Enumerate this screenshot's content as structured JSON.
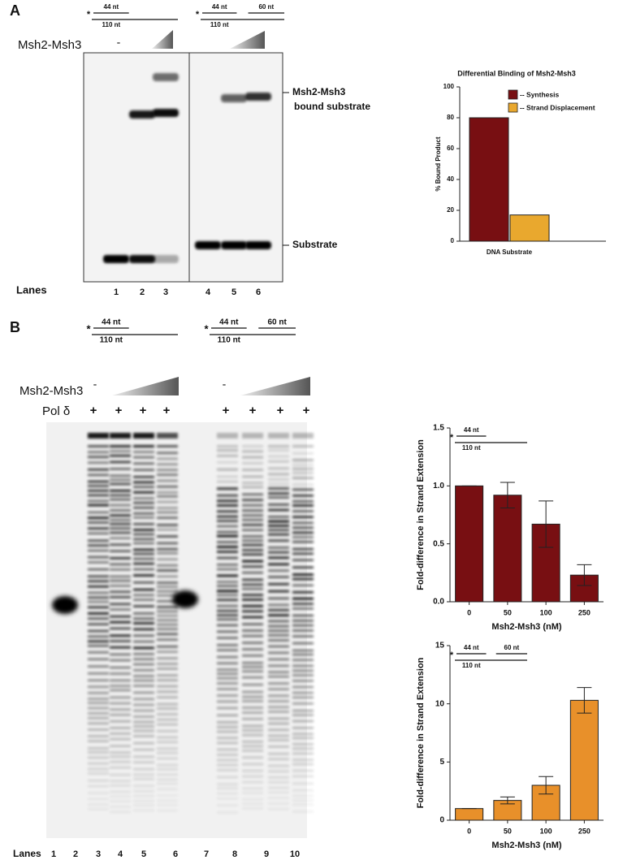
{
  "gel_a": {
    "panel": "A",
    "substrates": [
      {
        "star": "*",
        "labels": [
          "44 nt",
          "110 nt"
        ]
      },
      {
        "star": "*",
        "labels": [
          "44 nt",
          "60 nt",
          "110 nt"
        ]
      }
    ],
    "protein": "Msh2-Msh3",
    "minus": [
      "-"
    ],
    "bound_label": [
      "Msh2-Msh3",
      "bound substrate"
    ],
    "substrate_label": "Substrate",
    "lanes_title": "Lanes",
    "lanes": [
      "1",
      "2",
      "3",
      "4",
      "5",
      "6"
    ]
  },
  "gel_b": {
    "panel": "B",
    "substrates": [
      {
        "star": "*",
        "labels": [
          "44 nt",
          "110 nt"
        ]
      },
      {
        "star": "*",
        "labels": [
          "44 nt",
          "60 nt",
          "110 nt"
        ]
      }
    ],
    "protein": "Msh2-Msh3",
    "minus": [
      "-",
      "-"
    ],
    "pol": "Pol δ",
    "plus": [
      "+",
      "+",
      "+",
      "+",
      "+",
      "+",
      "+",
      "+"
    ],
    "lanes_title": "Lanes",
    "lanes": [
      "1",
      "2",
      "3",
      "4",
      "5",
      "6",
      "7",
      "8",
      "9",
      "10"
    ]
  },
  "chart_data": [
    {
      "type": "bar",
      "title": "Differential Binding of Msh2-Msh3",
      "ylabel": "% Bound Product",
      "categories": [
        "DNA Substrate"
      ],
      "series": [
        {
          "name": "-- Synthesis",
          "color": "#780f12",
          "values": [
            80
          ]
        },
        {
          "name": "-- Strand Displacement",
          "color": "#e9a82e",
          "values": [
            17
          ]
        }
      ],
      "ylim": [
        0,
        100
      ],
      "yticks": [
        0,
        20,
        40,
        60,
        80,
        100
      ]
    },
    {
      "type": "bar",
      "ylabel": "Fold-difference in Strand Extension",
      "xlabel": "Msh2-Msh3 (nM)",
      "inset": {
        "star": "*",
        "labels": [
          "44 nt",
          "110 nt"
        ]
      },
      "categories": [
        "0",
        "50",
        "100",
        "250"
      ],
      "values": [
        1.0,
        0.92,
        0.67,
        0.23
      ],
      "errors": [
        0,
        0.11,
        0.2,
        0.09
      ],
      "color": "#780f12",
      "ylim": [
        0,
        1.5
      ],
      "yticks": [
        {
          "value": 0,
          "label": "0.0"
        },
        0.5,
        {
          "value": 1,
          "label": "1.0"
        },
        1.5
      ]
    },
    {
      "type": "bar",
      "ylabel": "Fold-difference in Strand Extension",
      "xlabel": "Msh2-Msh3 (nM)",
      "inset": {
        "star": "*",
        "labels": [
          "44 nt",
          "60 nt",
          "110 nt"
        ]
      },
      "categories": [
        "0",
        "50",
        "100",
        "250"
      ],
      "values": [
        1,
        1.7,
        3.0,
        10.3
      ],
      "errors": [
        0,
        0.3,
        0.75,
        1.1
      ],
      "color": "#e8902a",
      "ylim": [
        0,
        15
      ],
      "yticks": [
        0,
        5,
        10,
        15
      ]
    }
  ]
}
